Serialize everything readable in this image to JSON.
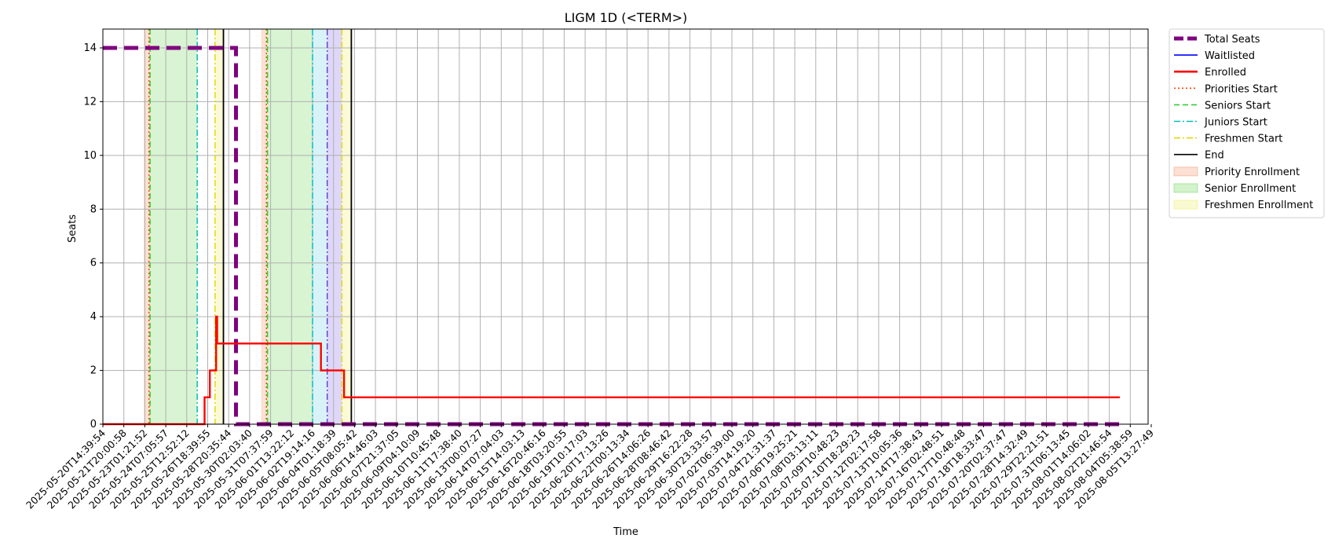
{
  "chart_data": {
    "type": "line",
    "title": "LIGM 1D (<TERM>)",
    "xlabel": "Time",
    "ylabel": "Seats",
    "ylim": [
      0,
      14.7
    ],
    "yticks": [
      0,
      2,
      4,
      6,
      8,
      10,
      12,
      14
    ],
    "grid": true,
    "legend_placement": "outside-top-right",
    "x_tick_labels": [
      "2025-05-20T14:39:54",
      "2025-05-21T20:00:58",
      "2025-05-23T01:21:52",
      "2025-05-24T07:05:57",
      "2025-05-25T12:52:12",
      "2025-05-26T18:39:55",
      "2025-05-28T20:35:44",
      "2025-05-30T02:03:40",
      "2025-05-31T07:37:59",
      "2025-06-01T13:22:12",
      "2025-06-02T19:14:16",
      "2025-06-04T01:18:39",
      "2025-06-05T08:05:42",
      "2025-06-06T14:46:03",
      "2025-06-07T21:37:05",
      "2025-06-09T04:10:09",
      "2025-06-10T10:45:48",
      "2025-06-11T17:38:40",
      "2025-06-13T00:07:27",
      "2025-06-14T07:04:03",
      "2025-06-15T14:03:13",
      "2025-06-16T20:46:16",
      "2025-06-18T03:20:55",
      "2025-06-19T10:17:03",
      "2025-06-20T17:13:26",
      "2025-06-22T00:13:34",
      "2025-06-26T14:06:26",
      "2025-06-28T08:46:42",
      "2025-06-29T16:22:28",
      "2025-06-30T23:33:57",
      "2025-07-02T06:39:00",
      "2025-07-03T14:19:20",
      "2025-07-04T21:31:37",
      "2025-07-06T19:25:21",
      "2025-07-08T03:13:11",
      "2025-07-09T10:48:23",
      "2025-07-10T18:29:23",
      "2025-07-12T02:17:58",
      "2025-07-13T10:05:36",
      "2025-07-14T17:38:43",
      "2025-07-16T02:48:51",
      "2025-07-17T10:48:48",
      "2025-07-18T18:33:47",
      "2025-07-20T02:37:47",
      "2025-07-28T14:32:49",
      "2025-07-29T22:21:51",
      "2025-07-31T06:13:45",
      "2025-08-01T14:06:02",
      "2025-08-02T21:46:54",
      "2025-08-04T05:38:59",
      "2025-08-05T13:27:49"
    ],
    "series": [
      {
        "name": "Total Seats",
        "color": "#800080",
        "style": "dashed",
        "points": [
          [
            0,
            14
          ],
          [
            6.35,
            14
          ],
          [
            6.35,
            0
          ],
          [
            48.5,
            0
          ]
        ]
      },
      {
        "name": "Enrolled",
        "color": "#ff0000",
        "style": "solid",
        "points": [
          [
            0,
            0
          ],
          [
            4.85,
            0
          ],
          [
            4.85,
            1
          ],
          [
            5.1,
            1
          ],
          [
            5.1,
            2
          ],
          [
            5.4,
            2
          ],
          [
            5.4,
            4
          ],
          [
            5.45,
            4
          ],
          [
            5.45,
            3
          ],
          [
            10.4,
            3
          ],
          [
            10.4,
            2
          ],
          [
            11.5,
            2
          ],
          [
            11.5,
            1
          ],
          [
            48.5,
            1
          ]
        ]
      },
      {
        "name": "Waitlisted",
        "color": "#0000ff",
        "style": "solid",
        "points": []
      }
    ],
    "vertical_markers": [
      {
        "name": "Priorities Start",
        "color": "#ff4500",
        "style": "dotted",
        "x": [
          2.2,
          7.8
        ]
      },
      {
        "name": "Seniors Start",
        "color": "#32cd32",
        "style": "dashed",
        "x": [
          2.25,
          7.85
        ]
      },
      {
        "name": "Juniors Start",
        "color": "#00bfbf",
        "style": "dashdot",
        "x": [
          4.5,
          10.0
        ]
      },
      {
        "name": "Freshmen Start",
        "color": "#e6d800",
        "style": "dashdot",
        "x": [
          5.35,
          11.4
        ]
      },
      {
        "name": "End",
        "color": "#000000",
        "style": "solid",
        "x": [
          5.75,
          11.85
        ]
      },
      {
        "name": "",
        "color": "#6a3fd0",
        "style": "dashdot",
        "x": [
          10.7
        ]
      }
    ],
    "shaded_regions": [
      {
        "name": "Priority Enrollment",
        "color": "#f4a582",
        "alpha": 0.35,
        "spans": [
          [
            1.95,
            2.25
          ],
          [
            7.55,
            7.85
          ]
        ]
      },
      {
        "name": "Senior Enrollment",
        "color": "#7fdc6a",
        "alpha": 0.3,
        "spans": [
          [
            2.25,
            4.5
          ],
          [
            7.85,
            10.0
          ]
        ]
      },
      {
        "name": "",
        "color": "#7fd7e6",
        "alpha": 0.3,
        "spans": [
          [
            10.0,
            10.7
          ]
        ]
      },
      {
        "name": "",
        "color": "#a08cf0",
        "alpha": 0.35,
        "spans": [
          [
            10.7,
            11.4
          ]
        ]
      },
      {
        "name": "Freshmen Enrollment",
        "color": "#eef07a",
        "alpha": 0.3,
        "spans": [
          [
            5.35,
            5.75
          ],
          [
            11.4,
            11.85
          ]
        ]
      }
    ],
    "legend": [
      {
        "label": "Total Seats",
        "kind": "line",
        "color": "#800080",
        "style": "thickdash"
      },
      {
        "label": "Waitlisted",
        "kind": "line",
        "color": "#0000ff",
        "style": "solid"
      },
      {
        "label": "Enrolled",
        "kind": "line",
        "color": "#ff0000",
        "style": "thick"
      },
      {
        "label": "Priorities Start",
        "kind": "line",
        "color": "#ff4500",
        "style": "dotted"
      },
      {
        "label": "Seniors Start",
        "kind": "line",
        "color": "#32cd32",
        "style": "dashed"
      },
      {
        "label": "Juniors Start",
        "kind": "line",
        "color": "#00bfbf",
        "style": "dashdot"
      },
      {
        "label": "Freshmen Start",
        "kind": "line",
        "color": "#e6d800",
        "style": "dashdot"
      },
      {
        "label": "End",
        "kind": "line",
        "color": "#000000",
        "style": "solid"
      },
      {
        "label": "Priority Enrollment",
        "kind": "patch",
        "color": "#f4a582"
      },
      {
        "label": "Senior Enrollment",
        "kind": "patch",
        "color": "#7fdc6a"
      },
      {
        "label": "Freshmen Enrollment",
        "kind": "patch",
        "color": "#eef07a"
      }
    ]
  }
}
